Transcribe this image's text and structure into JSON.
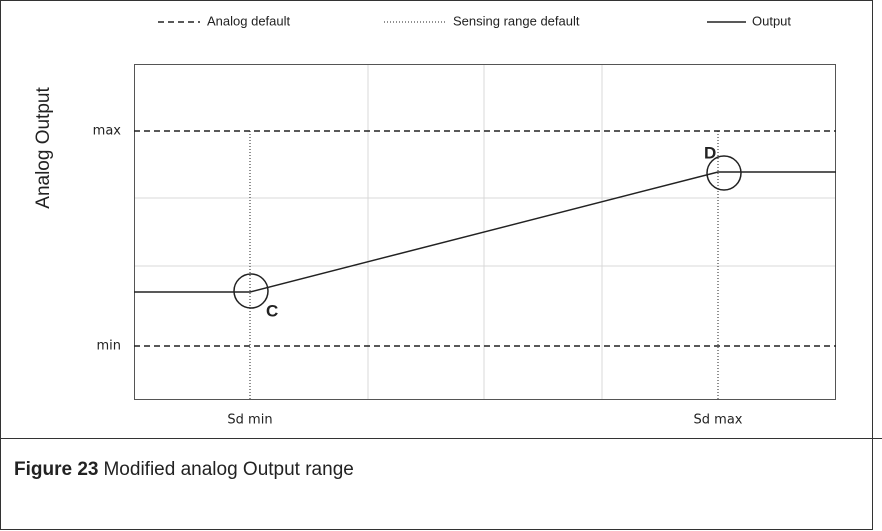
{
  "legend": [
    "Analog default",
    "Sensing range default",
    "Output"
  ],
  "y_axis_label": "Analog Output",
  "y_labels": [
    "max",
    "min"
  ],
  "x_labels": [
    "Sd min",
    "Sd max"
  ],
  "points": [
    "C",
    "D"
  ],
  "caption": {
    "label": "Figure 23",
    "text": "Modified analog Output range"
  }
}
